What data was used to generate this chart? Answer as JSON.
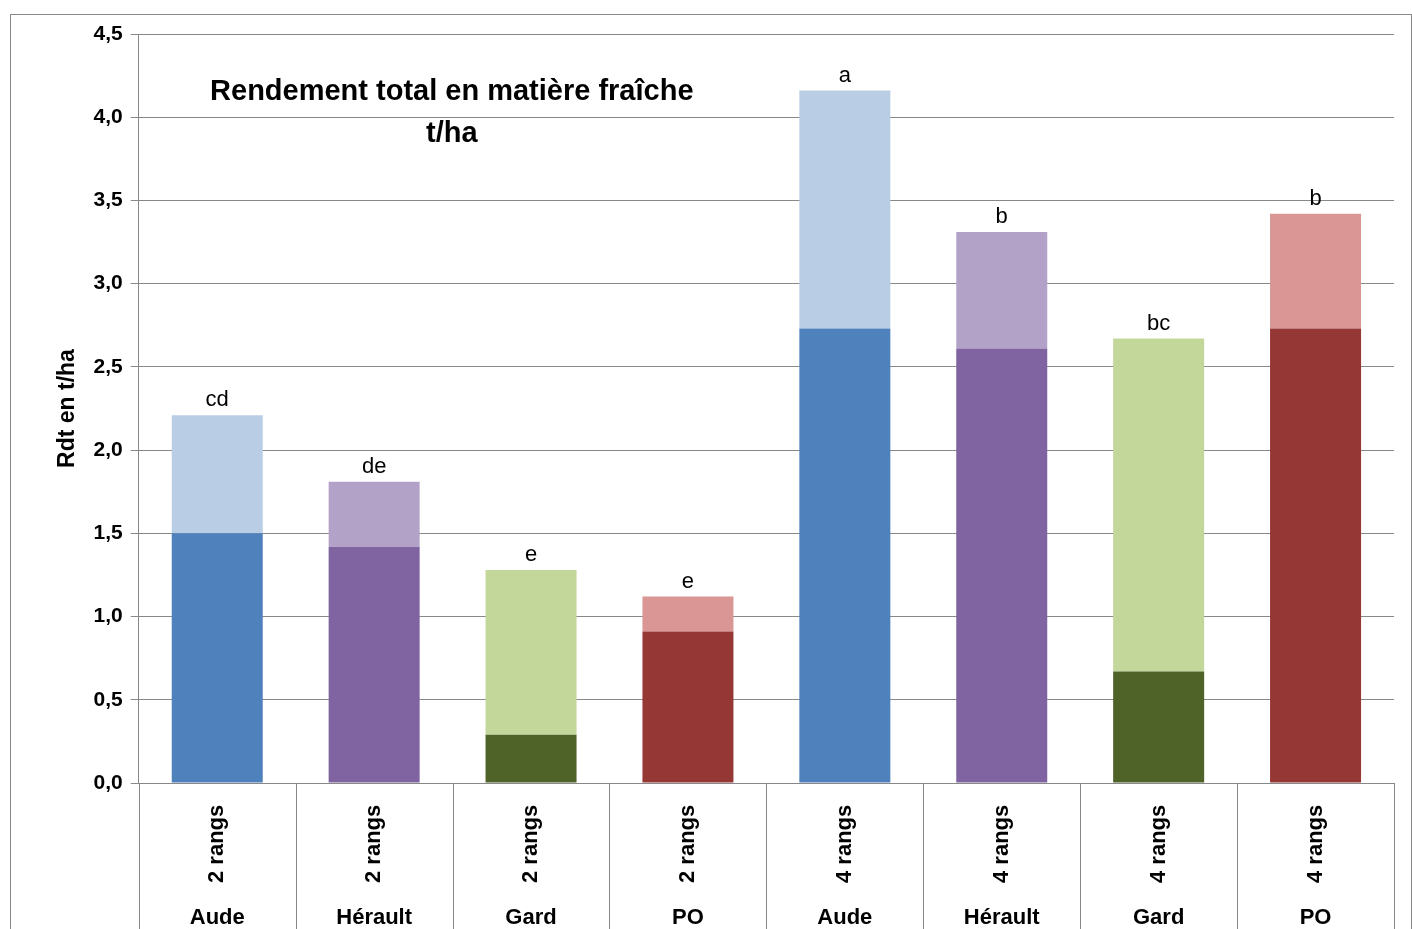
{
  "chart_data": {
    "type": "bar",
    "stacked": true,
    "title": "Rendement total en matière fraîche\nt/ha",
    "ylabel": "Rdt en t/ha",
    "categories": [
      "2 rangs\nAude",
      "2 rangs\nHérault",
      "2 rangs\nGard",
      "2 rangs\nPO",
      "4 rangs\nAude",
      "4 rangs\nHérault",
      "4 rangs\nGard",
      "4 rangs\nPO"
    ],
    "series": [
      {
        "colors": [
          "#4f81bd",
          "#8064a2",
          "#4f6228",
          "#953735",
          "#4f81bd",
          "#8064a2",
          "#4f6228",
          "#953735"
        ],
        "values": [
          1.5,
          1.42,
          0.29,
          0.91,
          2.73,
          2.61,
          0.67,
          2.73
        ]
      },
      {
        "colors": [
          "#b9cde5",
          "#b3a2c7",
          "#c4d79b",
          "#d99694",
          "#b9cde5",
          "#b3a2c7",
          "#c4d79b",
          "#d99694"
        ],
        "values": [
          0.71,
          0.39,
          0.99,
          0.21,
          1.43,
          0.7,
          2.0,
          0.69
        ]
      }
    ],
    "totals": [
      "cd",
      "de",
      "e",
      "e",
      "a",
      "b",
      "bc",
      "b"
    ],
    "ylim": [
      0,
      4.5
    ],
    "yticks": [
      {
        "value": 0,
        "label": "0,0"
      },
      {
        "value": 0.5,
        "label": "0,5"
      },
      {
        "value": 1,
        "label": "1,0"
      },
      {
        "value": 1.5,
        "label": "1,5"
      },
      {
        "value": 2,
        "label": "2,0"
      },
      {
        "value": 2.5,
        "label": "2,5"
      },
      {
        "value": 3,
        "label": "3,0"
      },
      {
        "value": 3.5,
        "label": "3,5"
      },
      {
        "value": 4,
        "label": "4,0"
      },
      {
        "value": 4.5,
        "label": "4,5"
      }
    ],
    "grid": "y",
    "legend": false
  }
}
